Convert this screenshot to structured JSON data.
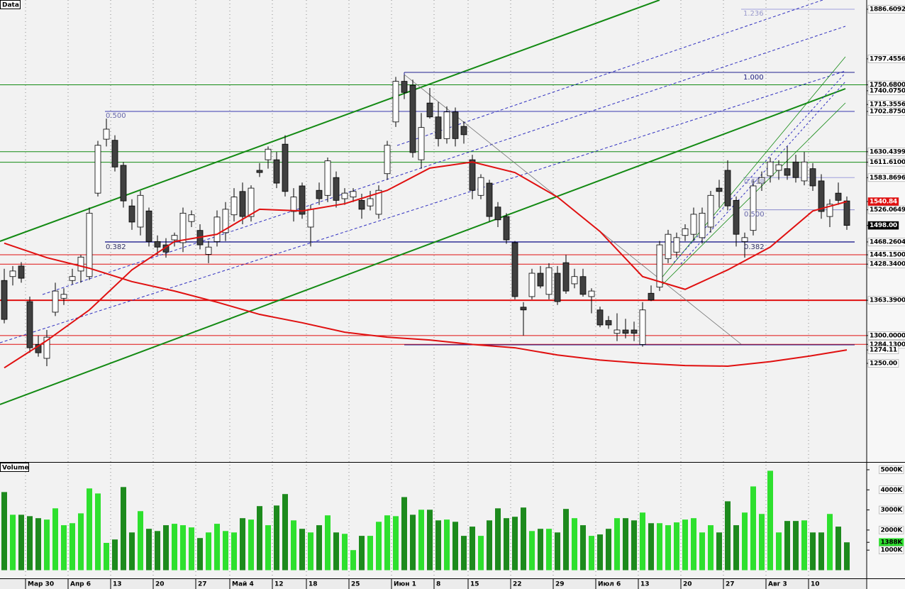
{
  "chart_data": [
    {
      "type": "candlestick",
      "title": "Data",
      "categories": [
        null,
        null,
        null,
        "Мар 30",
        null,
        null,
        null,
        null,
        "Апр 6",
        null,
        null,
        null,
        null,
        "13",
        null,
        null,
        null,
        null,
        "20",
        null,
        null,
        null,
        null,
        "27",
        null,
        null,
        null,
        "Май 4",
        null,
        null,
        null,
        null,
        "12",
        null,
        null,
        null,
        "18",
        null,
        null,
        null,
        null,
        "25",
        null,
        null,
        null,
        null,
        "Июн 1",
        null,
        null,
        null,
        null,
        "8",
        null,
        null,
        null,
        "15",
        null,
        null,
        null,
        null,
        "22",
        null,
        null,
        null,
        null,
        "29",
        null,
        null,
        null,
        null,
        "Июл 6",
        null,
        null,
        null,
        null,
        "13",
        null,
        null,
        null,
        null,
        "20",
        null,
        null,
        null,
        null,
        "27",
        null,
        null,
        null,
        null,
        "Авг 3",
        null,
        null,
        null,
        null,
        "10",
        null,
        null,
        null,
        null
      ],
      "open": [
        1399,
        1406,
        1425,
        1361,
        1284,
        1259,
        1342,
        1367,
        1399,
        1416,
        1406,
        1556,
        1653,
        1651,
        1606,
        1533,
        1495,
        1524,
        1469,
        1463,
        1472,
        1467,
        1505,
        1489,
        1446,
        1469,
        1485,
        1517,
        1559,
        1514,
        1597,
        1616,
        1616,
        1644,
        1523,
        1569,
        1495,
        1561,
        1552,
        1584,
        1546,
        1549,
        1543,
        1533,
        1518,
        1591,
        1684,
        1757,
        1750,
        1616,
        1718,
        1693,
        1654,
        1702,
        1676,
        1616,
        1552,
        1574,
        1531,
        1514,
        1467,
        1351,
        1370,
        1412,
        1374,
        1412,
        1431,
        1393,
        1406,
        1370,
        1346,
        1327,
        1304,
        1310,
        1310,
        1284,
        1376,
        1387,
        1438,
        1450,
        1480,
        1482,
        1476,
        1495,
        1565,
        1597,
        1543,
        1469,
        1489,
        1574,
        1587,
        1597,
        1600,
        1612,
        1578,
        1600,
        1578,
        1514,
        1556,
        1542
      ],
      "high": [
        1420,
        1425,
        1432,
        1370,
        1300,
        1310,
        1395,
        1385,
        1420,
        1445,
        1530,
        1650,
        1690,
        1660,
        1612,
        1545,
        1560,
        1530,
        1480,
        1475,
        1485,
        1530,
        1525,
        1500,
        1470,
        1525,
        1540,
        1565,
        1575,
        1570,
        1610,
        1640,
        1630,
        1660,
        1565,
        1575,
        1535,
        1575,
        1620,
        1595,
        1565,
        1565,
        1555,
        1560,
        1570,
        1650,
        1765,
        1768,
        1760,
        1700,
        1745,
        1720,
        1712,
        1710,
        1685,
        1625,
        1590,
        1580,
        1540,
        1520,
        1470,
        1360,
        1420,
        1425,
        1430,
        1425,
        1445,
        1420,
        1420,
        1385,
        1352,
        1335,
        1340,
        1330,
        1325,
        1360,
        1390,
        1470,
        1490,
        1485,
        1500,
        1530,
        1530,
        1560,
        1580,
        1615,
        1550,
        1485,
        1580,
        1595,
        1620,
        1615,
        1640,
        1625,
        1630,
        1610,
        1590,
        1545,
        1575,
        1550
      ],
      "low": [
        1322,
        1390,
        1395,
        1269,
        1262,
        1245,
        1335,
        1355,
        1392,
        1395,
        1400,
        1550,
        1640,
        1595,
        1530,
        1490,
        1480,
        1460,
        1445,
        1440,
        1460,
        1450,
        1495,
        1455,
        1430,
        1460,
        1470,
        1505,
        1500,
        1505,
        1585,
        1600,
        1565,
        1550,
        1505,
        1510,
        1460,
        1535,
        1540,
        1530,
        1535,
        1540,
        1510,
        1525,
        1510,
        1580,
        1675,
        1725,
        1620,
        1600,
        1690,
        1640,
        1645,
        1640,
        1645,
        1545,
        1545,
        1505,
        1495,
        1465,
        1365,
        1300,
        1365,
        1385,
        1365,
        1355,
        1375,
        1385,
        1370,
        1340,
        1315,
        1312,
        1290,
        1295,
        1290,
        1280,
        1362,
        1380,
        1430,
        1440,
        1470,
        1470,
        1465,
        1485,
        1530,
        1525,
        1460,
        1440,
        1480,
        1560,
        1575,
        1580,
        1580,
        1575,
        1570,
        1560,
        1510,
        1495,
        1535,
        1490
      ],
      "close": [
        1329,
        1416,
        1403,
        1278,
        1269,
        1297,
        1380,
        1374,
        1406,
        1441,
        1520,
        1642,
        1671,
        1603,
        1542,
        1504,
        1552,
        1469,
        1459,
        1450,
        1480,
        1520,
        1517,
        1463,
        1459,
        1513,
        1527,
        1549,
        1514,
        1565,
        1593,
        1635,
        1574,
        1559,
        1549,
        1518,
        1527,
        1546,
        1614,
        1543,
        1556,
        1559,
        1527,
        1546,
        1561,
        1642,
        1757,
        1737,
        1629,
        1674,
        1693,
        1654,
        1702,
        1654,
        1661,
        1561,
        1584,
        1514,
        1508,
        1472,
        1370,
        1346,
        1412,
        1389,
        1422,
        1361,
        1380,
        1406,
        1374,
        1380,
        1319,
        1319,
        1310,
        1304,
        1304,
        1346,
        1364,
        1463,
        1482,
        1476,
        1492,
        1518,
        1520,
        1552,
        1559,
        1533,
        1482,
        1476,
        1569,
        1584,
        1612,
        1607,
        1588,
        1584,
        1612,
        1569,
        1523,
        1536,
        1543,
        1498
      ],
      "up_color": "#ffffff",
      "down_color": "#404040",
      "lines": [
        {
          "color": "#e01010",
          "x": [
            0,
            5,
            10,
            15,
            20,
            25,
            30,
            35,
            40,
            45,
            50,
            55,
            60,
            65,
            70,
            75,
            80,
            85,
            90,
            95,
            99
          ],
          "values": [
            1242,
            1291,
            1346,
            1418,
            1469,
            1482,
            1527,
            1524,
            1537,
            1561,
            1601,
            1612,
            1593,
            1549,
            1487,
            1406,
            1383,
            1418,
            1459,
            1524,
            1540.84
          ]
        },
        {
          "color": "#e01010",
          "x": [
            0,
            5,
            10,
            15,
            20,
            25,
            30,
            35,
            40,
            45,
            50,
            55,
            60,
            65,
            70,
            75,
            80,
            85,
            90,
            95,
            99
          ],
          "values": [
            1466,
            1440,
            1421,
            1397,
            1380,
            1360,
            1338,
            1323,
            1306,
            1297,
            1292,
            1284,
            1278,
            1265,
            1256,
            1250,
            1246,
            1245,
            1253,
            1264,
            1274.11
          ]
        }
      ],
      "ylim": [
        1072.7,
        1903.2
      ],
      "yticks": [
        {
          "value": 1886.6092,
          "label": "1886.6092"
        },
        {
          "value": 1797.4556,
          "label": "1797.4556"
        },
        {
          "value": 1750.68,
          "label": "1750.6800"
        },
        {
          "value": 1740.075,
          "label": "1740.0750"
        },
        {
          "value": 1715.3556,
          "label": "1715.3556"
        },
        {
          "value": 1702.875,
          "label": "1702.8750"
        },
        {
          "value": 1630.4399,
          "label": "1630.4399"
        },
        {
          "value": 1611.61,
          "label": "1611.6100"
        },
        {
          "value": 1583.8696,
          "label": "1583.8696"
        },
        {
          "value": 1540.84,
          "label": "1540.84"
        },
        {
          "value": 1526.0649,
          "label": "1526.0649"
        },
        {
          "value": 1498,
          "label": "1498.00"
        },
        {
          "value": 1468.2604,
          "label": "1468.2604"
        },
        {
          "value": 1445.15,
          "label": "1445.1500"
        },
        {
          "value": 1428.34,
          "label": "1428.3400"
        },
        {
          "value": 1363.39,
          "label": "1363.3900"
        },
        {
          "value": 1300,
          "label": "1300.0000"
        },
        {
          "value": 1284.13,
          "label": "1284.1300"
        },
        {
          "value": 1274.11,
          "label": "1274.11"
        },
        {
          "value": 1250,
          "label": "1250.00"
        }
      ],
      "ytick_lines": [
        "#a0a0dd",
        null,
        "#138a13",
        null,
        null,
        "#3a3ab0",
        "#138a13",
        "#138a13",
        "#a0a0dd",
        null,
        "#8888cc",
        null,
        "#202090",
        "#e01010",
        "#e01010",
        "#e01010",
        "#e01010",
        "#e01010",
        null,
        null
      ],
      "ytick_boxes": [
        null,
        null,
        null,
        null,
        null,
        null,
        null,
        null,
        null,
        "#e01010",
        null,
        "#000000",
        null,
        null,
        null,
        null,
        null,
        null,
        null,
        null
      ],
      "annotations": [
        "1.236",
        "1.000",
        "0.500",
        "0.382",
        "0.618",
        "0.500",
        "0.382"
      ]
    },
    {
      "type": "bar",
      "title": "Volume",
      "values": [
        3890,
        2760,
        2760,
        2690,
        2590,
        2520,
        3080,
        2240,
        2340,
        2830,
        4070,
        3820,
        1360,
        1530,
        4140,
        1880,
        2940,
        2060,
        1950,
        2240,
        2310,
        2240,
        2130,
        1600,
        1880,
        2310,
        1950,
        1880,
        2590,
        2520,
        3190,
        2240,
        3220,
        3790,
        2480,
        2060,
        1880,
        2240,
        2730,
        1880,
        1810,
        1000,
        1710,
        1710,
        2410,
        2730,
        2690,
        3640,
        2760,
        3010,
        3010,
        2480,
        2520,
        2410,
        1710,
        2170,
        1710,
        2480,
        3080,
        2590,
        2660,
        3120,
        1950,
        2060,
        2060,
        1880,
        3050,
        2590,
        2240,
        1710,
        1780,
        2060,
        2590,
        2590,
        2480,
        2870,
        2340,
        2340,
        2240,
        2380,
        2520,
        2590,
        1880,
        2240,
        1880,
        3430,
        2240,
        2870,
        4170,
        2800,
        4950,
        1880,
        2450,
        2450,
        2480,
        1880,
        1880,
        2800,
        2170,
        1388
      ],
      "up_color": "#2ee02e",
      "down_color": "#1d8a1d",
      "ylim": [
        0,
        5352
      ],
      "yticks": [
        {
          "value": 5000,
          "label": "5000K"
        },
        {
          "value": 4000,
          "label": "4000K"
        },
        {
          "value": 3000,
          "label": "3000K"
        },
        {
          "value": 2000,
          "label": "2000K"
        },
        {
          "value": 1388,
          "label": "1388K"
        },
        {
          "value": 1000,
          "label": "1000K"
        }
      ],
      "ytick_boxes": [
        null,
        null,
        null,
        null,
        "#2ee02e",
        null
      ]
    }
  ]
}
